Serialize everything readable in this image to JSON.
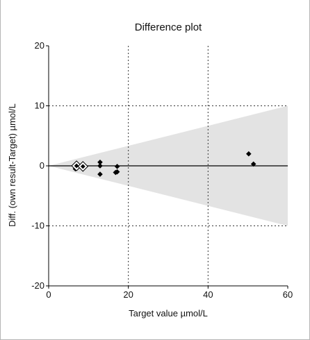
{
  "chart_data": {
    "type": "scatter",
    "title": "Difference plot",
    "xlabel": "Target value µmol/L",
    "ylabel": "Diff. (own result-Target) µmol/L",
    "xlim": [
      0,
      60
    ],
    "ylim": [
      -20,
      20
    ],
    "x_ticks": [
      "0",
      "20",
      "40",
      "60"
    ],
    "y_ticks": [
      "20",
      "10",
      "0",
      "-10",
      "-20"
    ],
    "vertical_dotted_gridlines_at": [
      20,
      40
    ],
    "horizontal_dotted_gridlines_at": [
      10,
      -10
    ],
    "zero_line": 0,
    "acceptance_band": {
      "upper": [
        [
          0,
          0
        ],
        [
          60,
          10
        ]
      ],
      "lower": [
        [
          0,
          0
        ],
        [
          60,
          -10
        ]
      ],
      "fill": "#e3e3e3"
    },
    "series": [
      {
        "marker": "filled-diamond",
        "color": "#000000",
        "points": [
          {
            "x": 6.7,
            "y": -0.5
          },
          {
            "x": 12.9,
            "y": 0.6
          },
          {
            "x": 12.9,
            "y": 0.0
          },
          {
            "x": 12.9,
            "y": -1.4
          },
          {
            "x": 16.8,
            "y": -1.1
          },
          {
            "x": 17.2,
            "y": -0.1
          },
          {
            "x": 17.2,
            "y": -1.0
          },
          {
            "x": 50.2,
            "y": 2.0
          },
          {
            "x": 51.4,
            "y": 0.3
          }
        ]
      },
      {
        "marker": "outlined-diamond",
        "color": "#000000",
        "points": [
          {
            "x": 7.0,
            "y": -0.0
          },
          {
            "x": 8.6,
            "y": -0.1
          }
        ]
      }
    ]
  }
}
